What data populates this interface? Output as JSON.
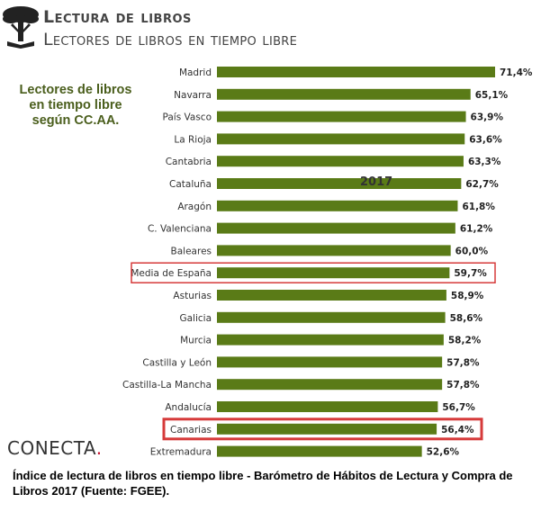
{
  "header": {
    "title_line1": "Lectura de libros",
    "title_line2": "Lectores de libros en tiempo libre",
    "logo_icon": "tree-book-icon"
  },
  "subtitle": {
    "line1": "Lectores de libros",
    "line2": "en tiempo libre",
    "line3": "según CC.AA."
  },
  "brand": {
    "name": "CONECTA",
    "dot": ".",
    "accent_color": "#c8102e"
  },
  "caption": "Índice de lectura de libros en tiempo libre - Barómetro de Hábitos de Lectura y Compra de Libros 2017 (Fuente: FGEE).",
  "chart_data": {
    "type": "bar",
    "orientation": "horizontal",
    "annotation": "2017",
    "bar_color": "#5a7b17",
    "highlight_color": "#d63a3a",
    "xlim": [
      0,
      71.4
    ],
    "categories": [
      "Madrid",
      "Navarra",
      "País Vasco",
      "La Rioja",
      "Cantabria",
      "Cataluña",
      "Aragón",
      "C. Valenciana",
      "Baleares",
      "Media de España",
      "Asturias",
      "Galicia",
      "Murcia",
      "Castilla y León",
      "Castilla-La Mancha",
      "Andalucía",
      "Canarias",
      "Extremadura"
    ],
    "values": [
      71.4,
      65.1,
      63.9,
      63.6,
      63.3,
      62.7,
      61.8,
      61.2,
      60.0,
      59.7,
      58.9,
      58.6,
      58.2,
      57.8,
      57.8,
      56.7,
      56.4,
      52.6
    ],
    "value_labels": [
      "71,4%",
      "65,1%",
      "63,9%",
      "63,6%",
      "63,3%",
      "62,7%",
      "61,8%",
      "61,2%",
      "60,0%",
      "59,7%",
      "58,9%",
      "58,6%",
      "58,2%",
      "57,8%",
      "57,8%",
      "56,7%",
      "56,4%",
      "52,6%"
    ],
    "highlighted": [
      "Media de España",
      "Canarias"
    ]
  }
}
